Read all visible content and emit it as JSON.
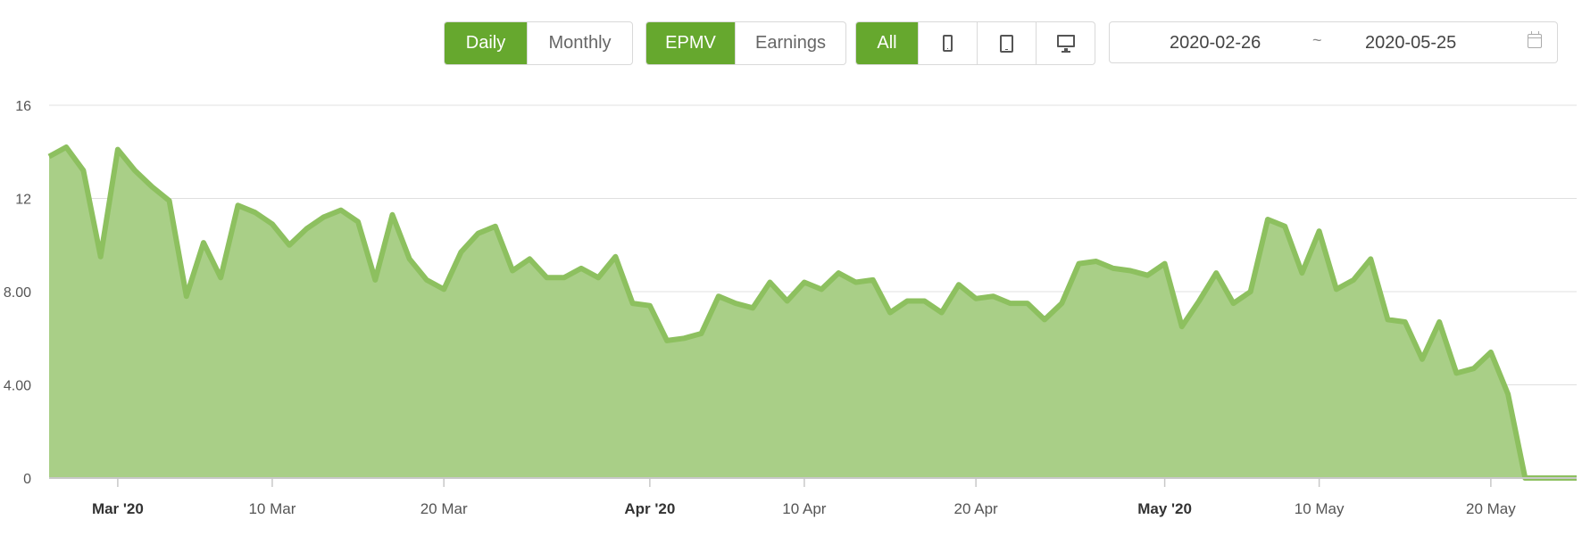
{
  "toolbar": {
    "period": {
      "daily": "Daily",
      "monthly": "Monthly",
      "selected": "Daily"
    },
    "metric": {
      "epmv": "EPMV",
      "earnings": "Earnings",
      "selected": "EPMV"
    },
    "device": {
      "all": "All",
      "selected": "All",
      "icons": [
        "phone-icon",
        "tablet-icon",
        "desktop-icon"
      ]
    },
    "date_range": {
      "start": "2020-02-26",
      "separator": "~",
      "end": "2020-05-25",
      "icon": "calendar-icon"
    }
  },
  "colors": {
    "accent": "#66a82e",
    "area_fill": "#a9cf87",
    "area_line": "#8dc05f",
    "grid": "#e0e0e0"
  },
  "chart_data": {
    "type": "area",
    "ylim": [
      0,
      16
    ],
    "y_ticks": [
      {
        "value": 0,
        "label": "0"
      },
      {
        "value": 4,
        "label": "4.00"
      },
      {
        "value": 8,
        "label": "8.00"
      },
      {
        "value": 12,
        "label": "12"
      },
      {
        "value": 16,
        "label": "16"
      }
    ],
    "x_ticks": [
      {
        "date": "2020-03-01",
        "label": "Mar '20",
        "major": true
      },
      {
        "date": "2020-03-10",
        "label": "10 Mar",
        "major": false
      },
      {
        "date": "2020-03-20",
        "label": "20 Mar",
        "major": false
      },
      {
        "date": "2020-04-01",
        "label": "Apr '20",
        "major": true
      },
      {
        "date": "2020-04-10",
        "label": "10 Apr",
        "major": false
      },
      {
        "date": "2020-04-20",
        "label": "20 Apr",
        "major": false
      },
      {
        "date": "2020-05-01",
        "label": "May '20",
        "major": true
      },
      {
        "date": "2020-05-10",
        "label": "10 May",
        "major": false
      },
      {
        "date": "2020-05-20",
        "label": "20 May",
        "major": false
      }
    ],
    "grid": true,
    "x_start": "2020-02-26",
    "x_end": "2020-05-25",
    "values": [
      13.8,
      14.2,
      13.2,
      9.5,
      14.1,
      13.2,
      12.5,
      11.9,
      7.8,
      10.1,
      8.6,
      11.7,
      11.4,
      10.9,
      10.0,
      10.7,
      11.2,
      11.5,
      11.0,
      8.5,
      11.3,
      9.4,
      8.5,
      8.1,
      9.7,
      10.5,
      10.8,
      8.9,
      9.4,
      8.6,
      8.6,
      9.0,
      8.6,
      9.5,
      7.5,
      7.4,
      5.9,
      6.0,
      6.2,
      7.8,
      7.5,
      7.3,
      8.4,
      7.6,
      8.4,
      8.1,
      8.8,
      8.4,
      8.5,
      7.1,
      7.6,
      7.6,
      7.1,
      8.3,
      7.7,
      7.8,
      7.5,
      7.5,
      6.8,
      7.5,
      9.2,
      9.3,
      9.0,
      8.9,
      8.7,
      9.2,
      6.5,
      7.6,
      8.8,
      7.5,
      8.0,
      11.1,
      10.8,
      8.8,
      10.6,
      8.1,
      8.5,
      9.4,
      6.8,
      6.7,
      5.1,
      6.7,
      4.5,
      4.7,
      5.4,
      3.6,
      0,
      0,
      0,
      0
    ]
  }
}
